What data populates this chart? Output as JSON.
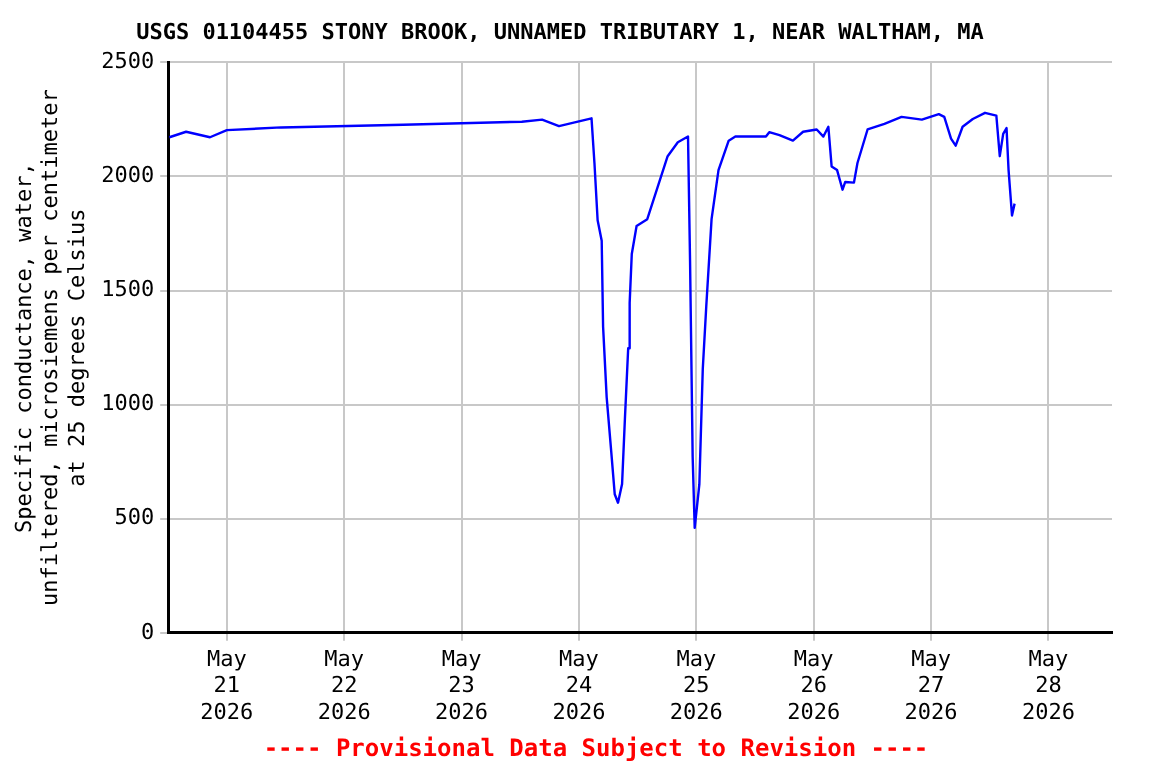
{
  "chart_data": {
    "type": "line",
    "title": "USGS 01104455 STONY BROOK, UNNAMED TRIBUTARY 1, NEAR WALTHAM, MA",
    "ylabel": "Specific conductance, water,\nunfiltered, microsiemens per centimeter\nat 25 degrees Celsius",
    "annotations": [
      "---- Provisional Data Subject to Revision ----"
    ],
    "x": [
      "2026-05-20T12:15",
      "2026-05-20T15:40",
      "2026-05-20T20:33",
      "2026-05-21T00:00",
      "2026-05-21T11:06",
      "2026-05-22T12:04",
      "2026-05-23T12:19",
      "2026-05-23T16:28",
      "2026-05-23T19:55",
      "2026-05-24T02:34",
      "2026-05-24T03:10",
      "2026-05-24T03:49",
      "2026-05-24T04:39",
      "2026-05-24T04:56",
      "2026-05-24T05:40",
      "2026-05-24T06:37",
      "2026-05-24T07:19",
      "2026-05-24T07:59",
      "2026-05-24T08:49",
      "2026-05-24T09:24",
      "2026-05-24T10:04",
      "2026-05-24T10:22",
      "2026-05-24T10:48",
      "2026-05-24T11:47",
      "2026-05-24T13:58",
      "2026-05-24T16:03",
      "2026-05-24T18:08",
      "2026-05-24T20:13",
      "2026-05-24T22:18",
      "2026-05-24T22:43",
      "2026-05-24T23:15",
      "2026-05-24T23:40",
      "2026-05-25T00:37",
      "2026-05-25T01:19",
      "2026-05-25T02:02",
      "2026-05-25T03:07",
      "2026-05-25T04:32",
      "2026-05-25T06:37",
      "2026-05-25T07:59",
      "2026-05-25T14:14",
      "2026-05-25T14:55",
      "2026-05-25T17:00",
      "2026-05-25T19:45",
      "2026-05-25T21:50",
      "2026-05-26T00:37",
      "2026-05-26T01:59",
      "2026-05-26T03:00",
      "2026-05-26T03:40",
      "2026-05-26T04:47",
      "2026-05-26T05:54",
      "2026-05-26T06:27",
      "2026-05-26T08:14",
      "2026-05-26T08:57",
      "2026-05-26T11:01",
      "2026-05-26T14:28",
      "2026-05-26T17:58",
      "2026-05-26T22:07",
      "2026-05-27T01:35",
      "2026-05-27T02:42",
      "2026-05-27T04:05",
      "2026-05-27T05:02",
      "2026-05-27T06:27",
      "2026-05-27T08:32",
      "2026-05-27T11:02",
      "2026-05-27T13:21",
      "2026-05-27T14:03",
      "2026-05-27T14:45",
      "2026-05-27T15:26",
      "2026-05-27T15:51",
      "2026-05-27T16:33",
      "2026-05-27T17:05"
    ],
    "series": [
      {
        "color": "#0000ff",
        "values": [
          2172,
          2196,
          2172,
          2203,
          2215,
          2227,
          2240,
          2249,
          2221,
          2255,
          2059,
          1808,
          1718,
          1342,
          1032,
          790,
          607,
          570,
          652,
          940,
          1247,
          1446,
          1660,
          1783,
          1813,
          1951,
          2089,
          2150,
          2175,
          1630,
          772,
          460,
          650,
          1155,
          1431,
          1813,
          2028,
          2157,
          2175,
          2175,
          2194,
          2181,
          2157,
          2196,
          2206,
          2175,
          2218,
          2044,
          2028,
          1942,
          1976,
          1973,
          2059,
          2206,
          2231,
          2261,
          2249,
          2273,
          2261,
          2166,
          2135,
          2218,
          2252,
          2279,
          2267,
          2089,
          2187,
          2212,
          2028,
          1829,
          1881
        ]
      }
    ],
    "xlim": [
      "2026-05-20T12:00",
      "2026-05-28T13:00"
    ],
    "xticks": [
      {
        "value": "2026-05-21",
        "label": "May\n21\n2026"
      },
      {
        "value": "2026-05-22",
        "label": "May\n22\n2026"
      },
      {
        "value": "2026-05-23",
        "label": "May\n23\n2026"
      },
      {
        "value": "2026-05-24",
        "label": "May\n24\n2026"
      },
      {
        "value": "2026-05-25",
        "label": "May\n25\n2026"
      },
      {
        "value": "2026-05-26",
        "label": "May\n26\n2026"
      },
      {
        "value": "2026-05-27",
        "label": "May\n27\n2026"
      },
      {
        "value": "2026-05-28",
        "label": "May\n28\n2026"
      }
    ],
    "ylim": [
      0,
      2500
    ],
    "yticks": [
      0,
      500,
      1000,
      1500,
      2000,
      2500
    ],
    "grid": true,
    "legend": false,
    "marker": "none",
    "line_style": "solid"
  }
}
